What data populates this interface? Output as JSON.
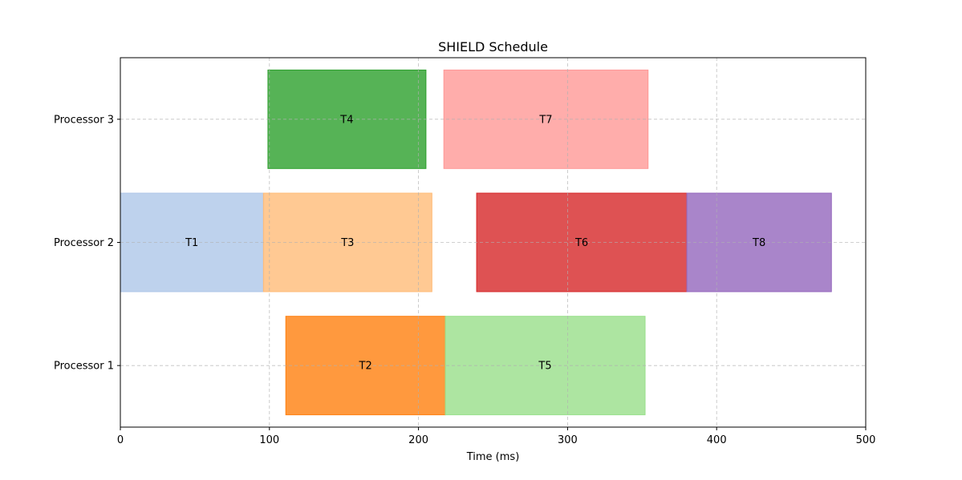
{
  "chart_data": {
    "type": "gantt",
    "title": "SHIELD Schedule",
    "xlabel": "Time (ms)",
    "ylabel": "",
    "xlim": [
      0,
      500
    ],
    "xticks": [
      0,
      100,
      200,
      300,
      400,
      500
    ],
    "grid": true,
    "categories": [
      "Processor 1",
      "Processor 2",
      "Processor 3"
    ],
    "tasks": [
      {
        "label": "T1",
        "processor": "Processor 2",
        "start": 0,
        "end": 96,
        "color": "#aec7e8"
      },
      {
        "label": "T2",
        "processor": "Processor 1",
        "start": 111,
        "end": 218,
        "color": "#ff7f0e"
      },
      {
        "label": "T3",
        "processor": "Processor 2",
        "start": 96,
        "end": 209,
        "color": "#ffbb78"
      },
      {
        "label": "T4",
        "processor": "Processor 3",
        "start": 99,
        "end": 205,
        "color": "#2ca02c"
      },
      {
        "label": "T5",
        "processor": "Processor 1",
        "start": 218,
        "end": 352,
        "color": "#98df8a"
      },
      {
        "label": "T6",
        "processor": "Processor 2",
        "start": 239,
        "end": 380,
        "color": "#d62728"
      },
      {
        "label": "T7",
        "processor": "Processor 3",
        "start": 217,
        "end": 354,
        "color": "#ff9896"
      },
      {
        "label": "T8",
        "processor": "Processor 2",
        "start": 380,
        "end": 477,
        "color": "#9467bd"
      }
    ]
  }
}
